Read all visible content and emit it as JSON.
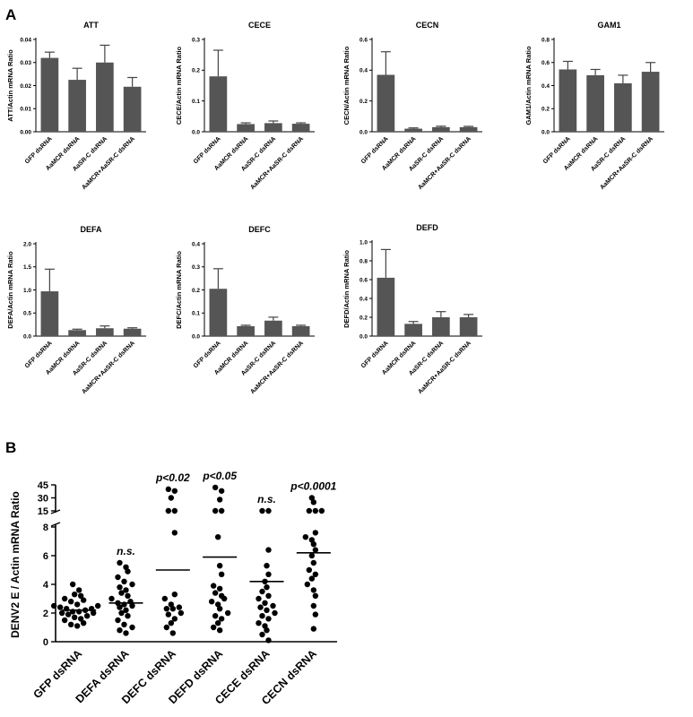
{
  "figure": {
    "panel_a_label": "A",
    "panel_b_label": "B"
  },
  "chart_data": [
    {
      "type": "bar",
      "title": "ATT",
      "ylabel": "ATT/Actin mRNA Ratio",
      "ylim": [
        0,
        0.04
      ],
      "yticks": [
        "0.00",
        "0.01",
        "0.02",
        "0.03",
        "0.04"
      ],
      "categories": [
        "GFP dsRNA",
        "AaMCR dsRNA",
        "AaSR-C dsRNA",
        "AaMCR+AaSR-C dsRNA"
      ],
      "values": [
        0.032,
        0.0225,
        0.03,
        0.0195
      ],
      "errors": [
        0.0025,
        0.005,
        0.0075,
        0.004
      ]
    },
    {
      "type": "bar",
      "title": "CECE",
      "ylabel": "CECE/Actin mRNA Ratio",
      "ylim": [
        0,
        0.3
      ],
      "yticks": [
        "0.0",
        "0.1",
        "0.2",
        "0.3"
      ],
      "categories": [
        "GFP dsRNA",
        "AaMCR dsRNA",
        "AaSR-C dsRNA",
        "AaMCR+AaSR-C dsRNA"
      ],
      "values": [
        0.18,
        0.025,
        0.028,
        0.026
      ],
      "errors": [
        0.085,
        0.004,
        0.007,
        0.003
      ]
    },
    {
      "type": "bar",
      "title": "CECN",
      "ylabel": "CECN/Actin mRNA Ratio",
      "ylim": [
        0,
        0.6
      ],
      "yticks": [
        "0.0",
        "0.2",
        "0.4",
        "0.6"
      ],
      "categories": [
        "GFP dsRNA",
        "AaMCR dsRNA",
        "AaSR-C dsRNA",
        "AaMCR+AaSR-C dsRNA"
      ],
      "values": [
        0.37,
        0.02,
        0.03,
        0.03
      ],
      "errors": [
        0.15,
        0.005,
        0.006,
        0.005
      ]
    },
    {
      "type": "bar",
      "title": "GAM1",
      "ylabel": "GAM1/Actin mRNA Ratio",
      "ylim": [
        0,
        0.8
      ],
      "yticks": [
        "0.0",
        "0.2",
        "0.4",
        "0.6",
        "0.8"
      ],
      "categories": [
        "GFP dsRNA",
        "AaMCR dsRNA",
        "AaSR-C dsRNA",
        "AaMCR+AaSR-C dsRNA"
      ],
      "values": [
        0.54,
        0.49,
        0.42,
        0.52
      ],
      "errors": [
        0.07,
        0.05,
        0.07,
        0.08
      ]
    },
    {
      "type": "bar",
      "title": "DEFA",
      "ylabel": "DEFA/Actin mRNA Ratio",
      "ylim": [
        0,
        2.0
      ],
      "yticks": [
        "0.0",
        "0.5",
        "1.0",
        "1.5",
        "2.0"
      ],
      "categories": [
        "GFP dsRNA",
        "AaMCR dsRNA",
        "AaSR-C dsRNA",
        "AaMCR+AaSR-C dsRNA"
      ],
      "values": [
        0.97,
        0.13,
        0.17,
        0.16
      ],
      "errors": [
        0.48,
        0.02,
        0.05,
        0.02
      ]
    },
    {
      "type": "bar",
      "title": "DEFC",
      "ylabel": "DEFC/Actin mRNA Ratio",
      "ylim": [
        0,
        0.4
      ],
      "yticks": [
        "0.0",
        "0.1",
        "0.2",
        "0.3",
        "0.4"
      ],
      "categories": [
        "GFP dsRNA",
        "AaMCR dsRNA",
        "AaSR-C dsRNA",
        "AaMCR+AaSR-C dsRNA"
      ],
      "values": [
        0.205,
        0.043,
        0.067,
        0.043
      ],
      "errors": [
        0.087,
        0.004,
        0.015,
        0.004
      ]
    },
    {
      "type": "bar",
      "title": "DEFD",
      "ylabel": "DEFD/Actin mRNA Ratio",
      "ylim": [
        0,
        1.0
      ],
      "yticks": [
        "0.0",
        "0.2",
        "0.4",
        "0.6",
        "0.8",
        "1.0"
      ],
      "categories": [
        "GFP dsRNA",
        "AaMCR dsRNA",
        "AaSR-C dsRNA",
        "AaMCR+AaSR-C dsRNA"
      ],
      "values": [
        0.62,
        0.13,
        0.2,
        0.2
      ],
      "errors": [
        0.3,
        0.025,
        0.06,
        0.03
      ]
    },
    {
      "type": "scatter",
      "title": "",
      "ylabel": "DENV2 E / Actin mRNA Ratio",
      "ylim": [
        0,
        45
      ],
      "axis_break": [
        8,
        15
      ],
      "yticks": [
        "0",
        "2",
        "4",
        "6",
        "8",
        "15",
        "30",
        "45"
      ],
      "categories": [
        "GFP dsRNA",
        "DEFA dsRNA",
        "DEFC dsRNA",
        "DEFD dsRNA",
        "CECE dsRNA",
        "CECN dsRNA"
      ],
      "means": [
        2.2,
        2.7,
        5.0,
        5.9,
        4.2,
        6.2
      ],
      "significance": [
        "",
        "n.s.",
        "p<0.02",
        "p<0.05",
        "n.s.",
        "p<0.0001"
      ],
      "series": [
        {
          "values": [
            1.1,
            1.2,
            1.3,
            1.5,
            1.6,
            1.7,
            1.8,
            1.9,
            2.0,
            2.0,
            2.1,
            2.1,
            2.2,
            2.3,
            2.3,
            2.4,
            2.5,
            2.5,
            2.6,
            2.8,
            2.9,
            3.0,
            3.2,
            3.3,
            3.6,
            4.0
          ]
        },
        {
          "values": [
            0.6,
            0.8,
            1.0,
            1.2,
            1.5,
            1.8,
            2.0,
            2.2,
            2.4,
            2.5,
            2.6,
            2.7,
            2.8,
            3.0,
            3.2,
            3.4,
            3.6,
            3.8,
            4.0,
            4.2,
            4.5,
            4.9,
            5.2,
            5.5
          ]
        },
        {
          "values": [
            0.6,
            1.0,
            1.3,
            1.6,
            1.9,
            2.0,
            2.3,
            2.3,
            2.4,
            2.6,
            3.0,
            3.3,
            7.6,
            11.0,
            14.0,
            30.0,
            38.0,
            40.0
          ]
        },
        {
          "values": [
            0.8,
            1.0,
            1.3,
            1.6,
            1.8,
            2.0,
            2.3,
            2.6,
            2.8,
            3.0,
            3.2,
            3.4,
            3.7,
            3.9,
            4.7,
            5.3,
            7.3,
            11.0,
            12.5,
            28.0,
            38.0,
            42.0
          ]
        },
        {
          "values": [
            0.1,
            0.5,
            0.8,
            1.1,
            1.3,
            1.6,
            1.8,
            2.0,
            2.2,
            2.4,
            2.5,
            2.7,
            3.0,
            3.2,
            3.5,
            3.8,
            4.2,
            4.7,
            5.3,
            6.4,
            10.0,
            13.0
          ]
        },
        {
          "values": [
            0.9,
            1.9,
            2.5,
            3.2,
            3.6,
            4.0,
            4.4,
            4.7,
            5.0,
            5.5,
            6.0,
            6.4,
            6.8,
            7.1,
            7.3,
            7.6,
            10.5,
            12.0,
            15.0,
            25.0,
            30.0
          ]
        }
      ]
    }
  ]
}
